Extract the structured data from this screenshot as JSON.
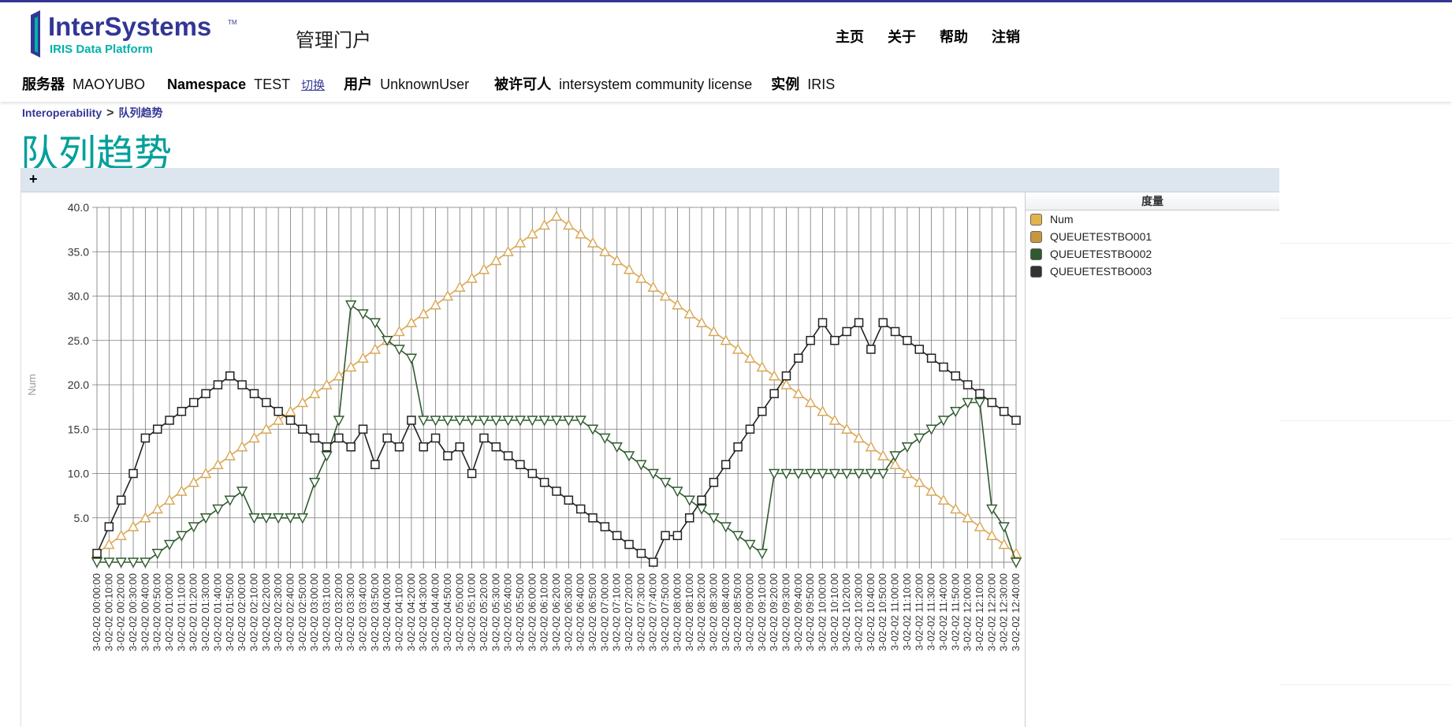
{
  "header": {
    "logo_main": "InterSystems",
    "logo_sub": "IRIS Data Platform",
    "portal_title": "管理门户",
    "menu": [
      "主页",
      "关于",
      "帮助",
      "注销"
    ],
    "colors": {
      "brand": "#333695",
      "accent": "#00a09a",
      "logo_green": "#00b2a9"
    }
  },
  "info": {
    "server_label": "服务器",
    "server": "MAOYUBO",
    "namespace_label": "Namespace",
    "namespace": "TEST",
    "switch_label": "切换",
    "user_label": "用户",
    "user": "UnknownUser",
    "licensee_label": "被许可人",
    "licensee": "intersystem community license",
    "instance_label": "实例",
    "instance": "IRIS"
  },
  "breadcrumb": {
    "root": "Interoperability",
    "separator": ">",
    "current": "队列趋势"
  },
  "page_title": "队列趋势",
  "toolbar": {
    "expand_label": "+"
  },
  "legend": {
    "title": "度量",
    "items": [
      {
        "name": "Num",
        "color": "#e3b44a"
      },
      {
        "name": "QUEUETESTBO001",
        "color": "#c8963c"
      },
      {
        "name": "QUEUETESTBO002",
        "color": "#2f5a2f"
      },
      {
        "name": "QUEUETESTBO003",
        "color": "#333333"
      }
    ]
  },
  "chart_data": {
    "type": "line",
    "ylabel": "Num",
    "ylim": [
      0,
      40
    ],
    "y_ticks": [
      5.0,
      10.0,
      15.0,
      20.0,
      25.0,
      30.0,
      35.0,
      40.0
    ],
    "grid": true,
    "x_label_prefix": "3-02-02",
    "x": [
      "00:00:00",
      "00:10:00",
      "00:20:00",
      "00:30:00",
      "00:40:00",
      "00:50:00",
      "01:00:00",
      "01:10:00",
      "01:20:00",
      "01:30:00",
      "01:40:00",
      "01:50:00",
      "02:00:00",
      "02:10:00",
      "02:20:00",
      "02:30:00",
      "02:40:00",
      "02:50:00",
      "03:00:00",
      "03:10:00",
      "03:20:00",
      "03:30:00",
      "03:40:00",
      "03:50:00",
      "04:00:00",
      "04:10:00",
      "04:20:00",
      "04:30:00",
      "04:40:00",
      "04:50:00",
      "05:00:00",
      "05:10:00",
      "05:20:00",
      "05:30:00",
      "05:40:00",
      "05:50:00",
      "06:00:00",
      "06:10:00",
      "06:20:00",
      "06:30:00",
      "06:40:00",
      "06:50:00",
      "07:00:00",
      "07:10:00",
      "07:20:00",
      "07:30:00",
      "07:40:00",
      "07:50:00",
      "08:00:00",
      "08:10:00",
      "08:20:00",
      "08:30:00",
      "08:40:00",
      "08:50:00",
      "09:00:00",
      "09:10:00",
      "09:20:00",
      "09:30:00",
      "09:40:00",
      "09:50:00",
      "10:00:00",
      "10:10:00",
      "10:20:00",
      "10:30:00",
      "10:40:00",
      "10:50:00",
      "11:00:00",
      "11:10:00",
      "11:20:00",
      "11:30:00",
      "11:40:00",
      "11:50:00",
      "12:00:00",
      "12:10:00",
      "12:20:00",
      "12:30:00",
      "12:40:00"
    ],
    "series": [
      {
        "name": "QUEUETESTBO001",
        "color": "#d9a857",
        "marker": "triangle-up",
        "values": [
          1,
          2,
          3,
          4,
          5,
          6,
          7,
          8,
          9,
          10,
          11,
          12,
          13,
          14,
          15,
          16,
          17,
          18,
          19,
          20,
          21,
          22,
          23,
          24,
          25,
          26,
          27,
          28,
          29,
          30,
          31,
          32,
          33,
          34,
          35,
          36,
          37,
          38,
          39,
          38,
          37,
          36,
          35,
          34,
          33,
          32,
          31,
          30,
          29,
          28,
          27,
          26,
          25,
          24,
          23,
          22,
          21,
          20,
          19,
          18,
          17,
          16,
          15,
          14,
          13,
          12,
          11,
          10,
          9,
          8,
          7,
          6,
          5,
          4,
          3,
          2,
          1
        ]
      },
      {
        "name": "QUEUETESTBO002",
        "color": "#2f5a2f",
        "marker": "triangle-down",
        "values": [
          0,
          0,
          0,
          0,
          0,
          1,
          2,
          3,
          4,
          5,
          6,
          7,
          8,
          5,
          5,
          5,
          5,
          5,
          9,
          12,
          16,
          29,
          28,
          27,
          25,
          24,
          23,
          16,
          16,
          16,
          16,
          16,
          16,
          16,
          16,
          16,
          16,
          16,
          16,
          16,
          16,
          15,
          14,
          13,
          12,
          11,
          10,
          9,
          8,
          7,
          6,
          5,
          4,
          3,
          2,
          1,
          10,
          10,
          10,
          10,
          10,
          10,
          10,
          10,
          10,
          10,
          12,
          13,
          14,
          15,
          16,
          17,
          18,
          18,
          6,
          4,
          0
        ]
      },
      {
        "name": "QUEUETESTBO003",
        "color": "#222222",
        "marker": "square",
        "values": [
          1,
          4,
          7,
          10,
          14,
          15,
          16,
          17,
          18,
          19,
          20,
          21,
          20,
          19,
          18,
          17,
          16,
          15,
          14,
          13,
          14,
          13,
          15,
          11,
          14,
          13,
          16,
          13,
          14,
          12,
          13,
          10,
          14,
          13,
          12,
          11,
          10,
          9,
          8,
          7,
          6,
          5,
          4,
          3,
          2,
          1,
          0,
          3,
          3,
          5,
          7,
          9,
          11,
          13,
          15,
          17,
          19,
          21,
          23,
          25,
          27,
          25,
          26,
          27,
          24,
          27,
          26,
          25,
          24,
          23,
          22,
          21,
          20,
          19,
          18,
          17,
          16
        ]
      }
    ]
  }
}
